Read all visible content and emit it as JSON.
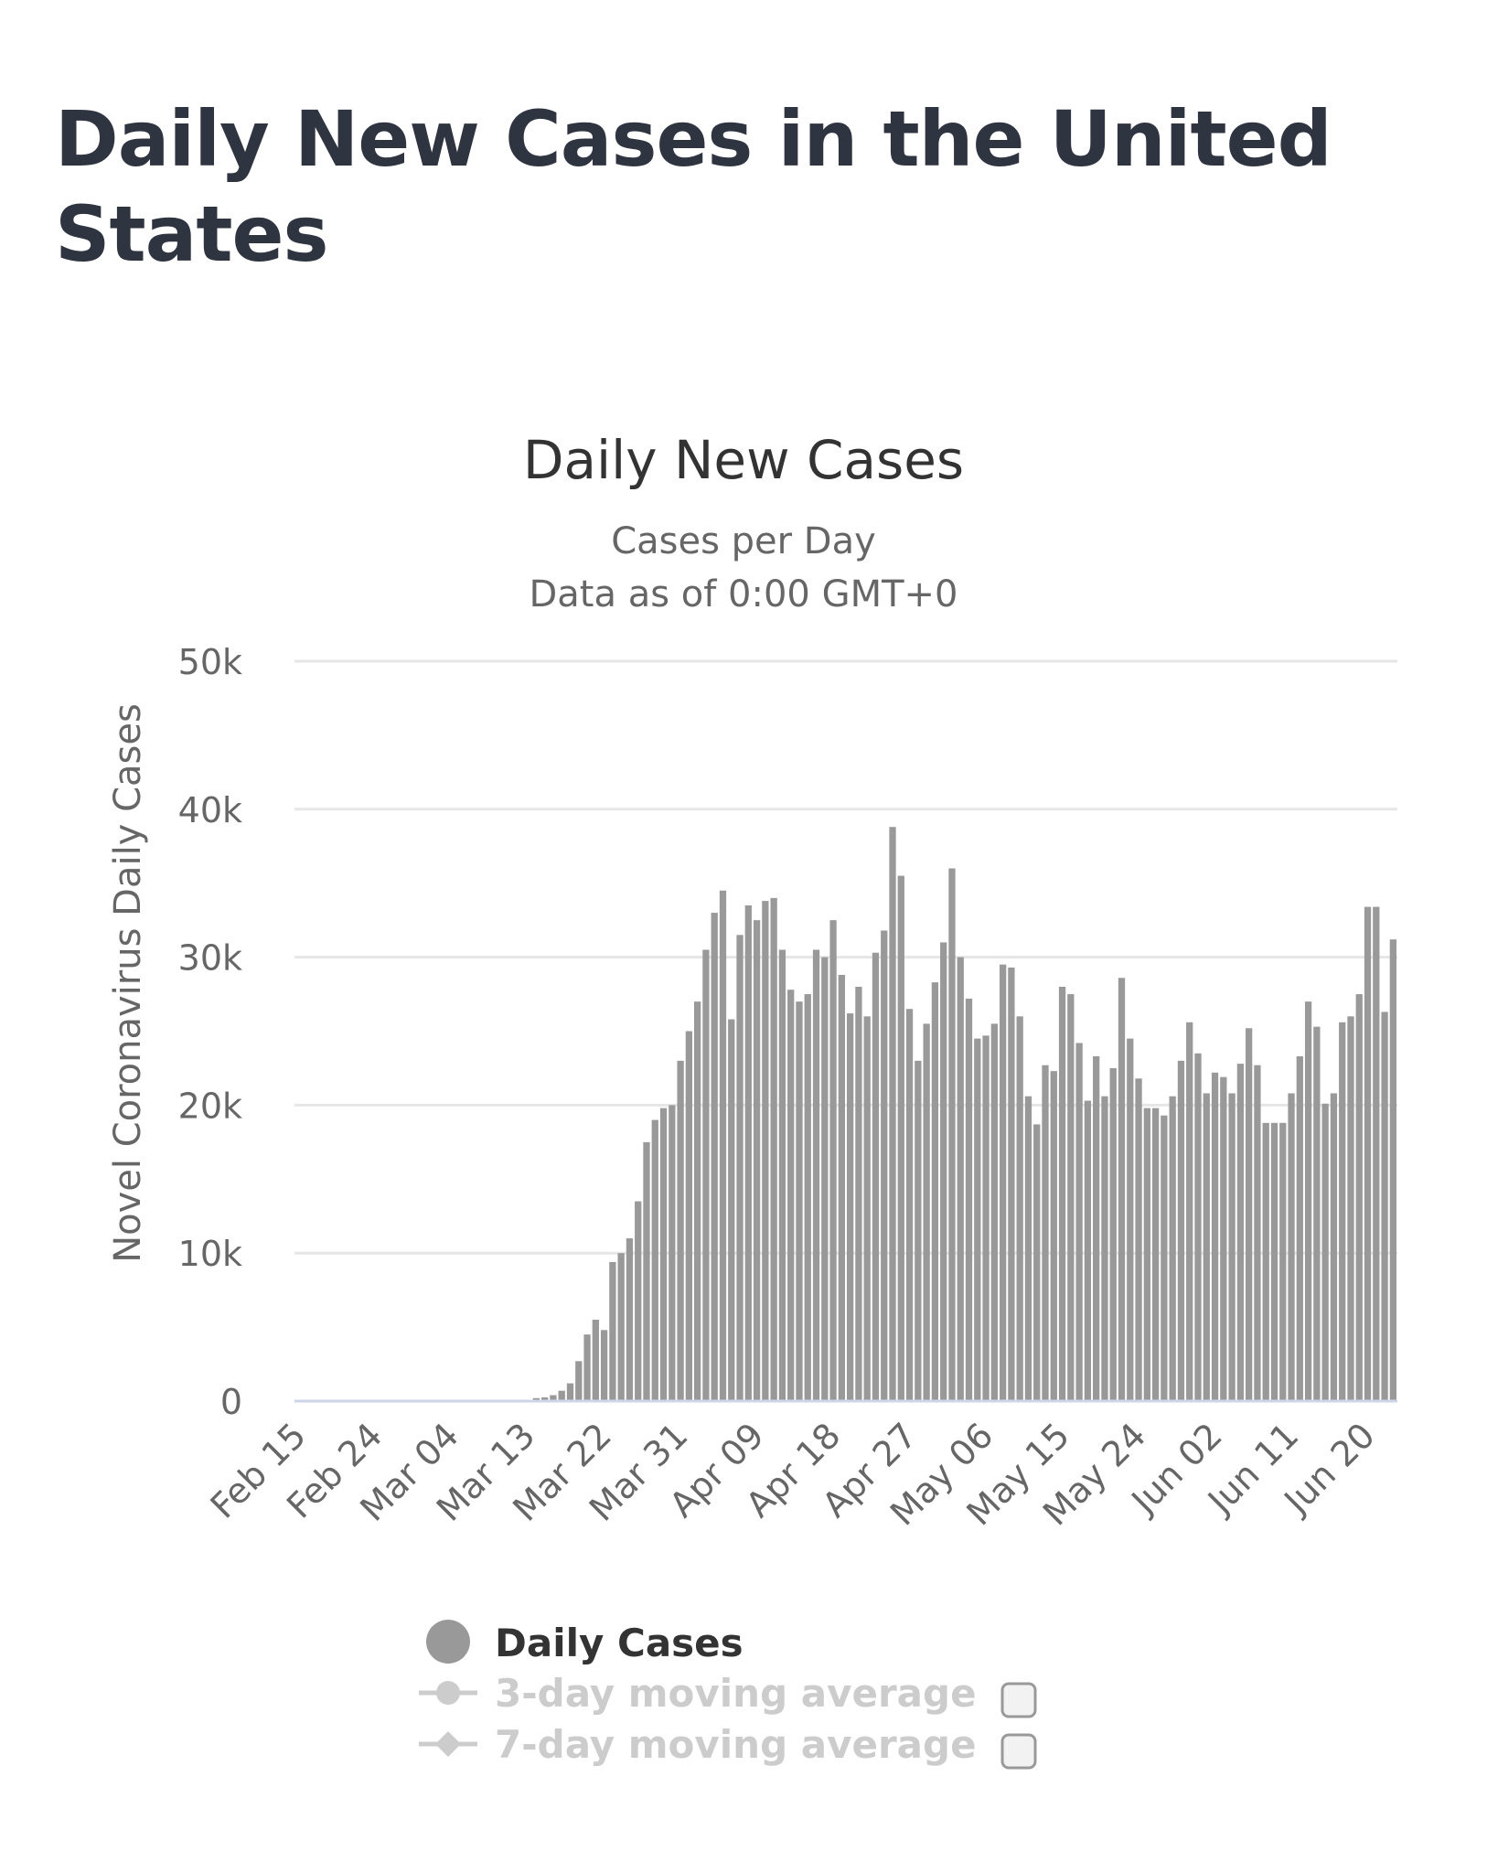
{
  "page": {
    "heading": "Daily New Cases in the United States"
  },
  "chart_data": {
    "type": "bar",
    "title": "Daily New Cases",
    "subtitle_line1": "Cases per Day",
    "subtitle_line2": "Data as of 0:00 GMT+0",
    "xlabel": "",
    "ylabel": "Novel Coronavirus Daily Cases",
    "ylim": [
      0,
      50000
    ],
    "yticks": [
      0,
      10000,
      20000,
      30000,
      40000,
      50000
    ],
    "ytick_labels": [
      "0",
      "10k",
      "20k",
      "30k",
      "40k",
      "50k"
    ],
    "xtick_labels": [
      "Feb 15",
      "Feb 24",
      "Mar 04",
      "Mar 13",
      "Mar 22",
      "Mar 31",
      "Apr 09",
      "Apr 18",
      "Apr 27",
      "May 06",
      "May 15",
      "May 24",
      "Jun 02",
      "Jun 11",
      "Jun 20"
    ],
    "xtick_every": 9,
    "grid": true,
    "start_label": "Feb 15",
    "series": [
      {
        "name": "Daily Cases",
        "color": "#999999",
        "values": [
          0,
          0,
          0,
          0,
          0,
          0,
          0,
          0,
          0,
          0,
          0,
          0,
          0,
          0,
          0,
          0,
          0,
          0,
          0,
          0,
          0,
          0,
          0,
          0,
          0,
          0,
          0,
          0,
          200,
          250,
          400,
          700,
          1200,
          2700,
          4500,
          5500,
          4800,
          9400,
          10000,
          11000,
          13500,
          17500,
          19000,
          19800,
          20000,
          23000,
          25000,
          27000,
          30500,
          33000,
          34500,
          25800,
          31500,
          33500,
          32500,
          33800,
          34000,
          30500,
          27800,
          27000,
          27500,
          30500,
          30000,
          32500,
          28800,
          26200,
          28000,
          26000,
          30300,
          31800,
          38800,
          35500,
          26500,
          23000,
          25500,
          28300,
          31000,
          36000,
          30000,
          27200,
          24500,
          24700,
          25500,
          29500,
          29300,
          26000,
          20600,
          18700,
          22700,
          22300,
          28000,
          27500,
          24200,
          20300,
          23300,
          20600,
          22500,
          28600,
          24500,
          21800,
          19800,
          19800,
          19300,
          20600,
          23000,
          25600,
          23500,
          20800,
          22200,
          21900,
          20800,
          22800,
          25200,
          22700,
          18800,
          18800,
          18800,
          20800,
          23300,
          27000,
          25300,
          20100,
          20800,
          25600,
          26000,
          27500,
          33400,
          33400,
          26300,
          31200
        ]
      },
      {
        "name": "3-day moving average",
        "enabled": false
      },
      {
        "name": "7-day moving average",
        "enabled": false
      }
    ],
    "legend_placement": "bottom-left"
  }
}
